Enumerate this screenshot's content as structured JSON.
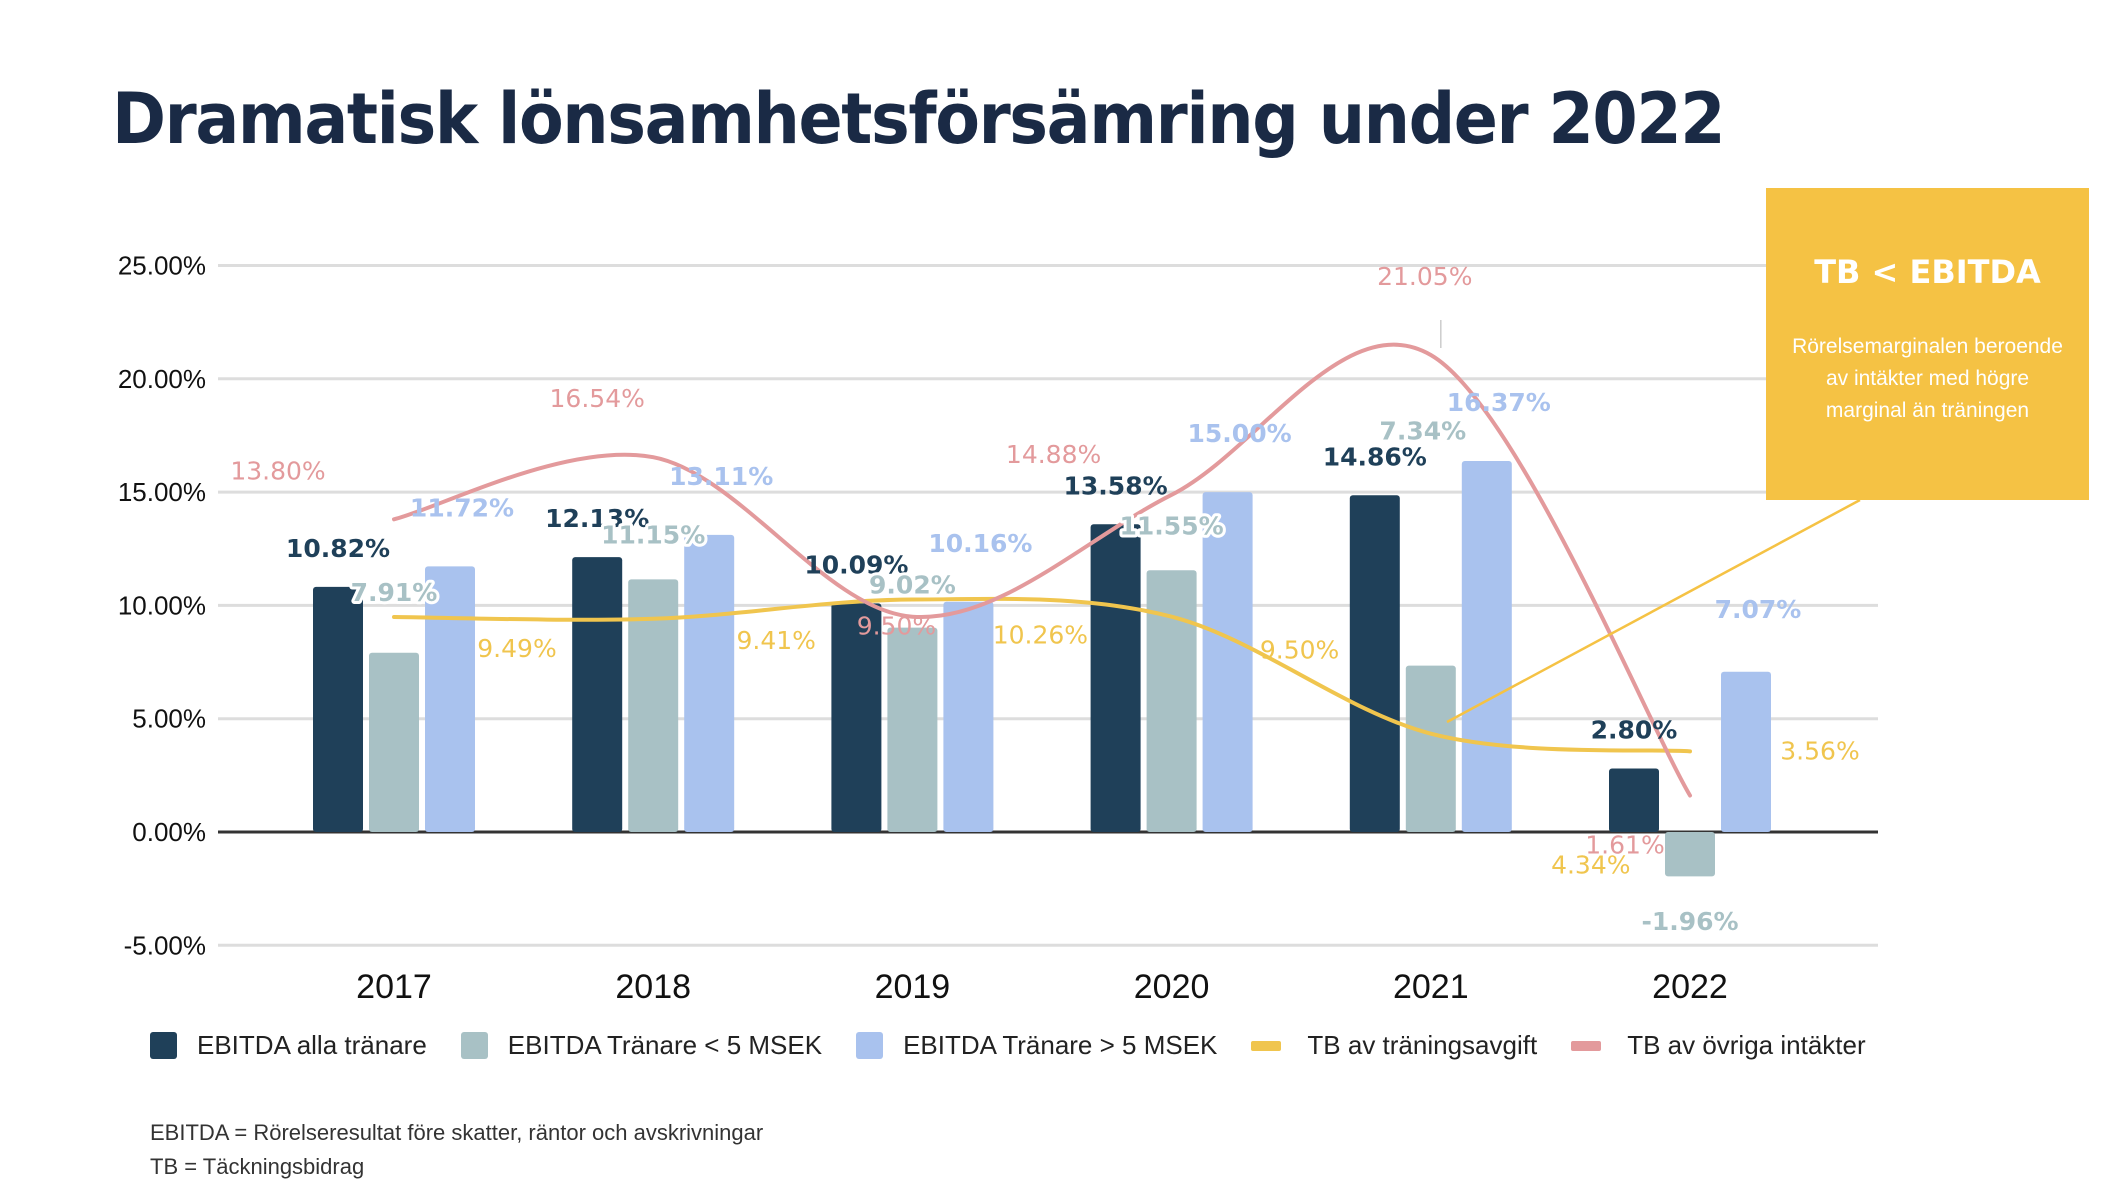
{
  "title": "Dramatisk lönsamhetsförsämring under 2022",
  "callout": {
    "title": "TB < EBITDA",
    "text": "Rörelsemarginalen beroende av intäkter med högre marginal än träningen"
  },
  "footnotes": [
    "EBITDA = Rörelseresultat före skatter, räntor och avskrivningar",
    "TB = Täckningsbidrag"
  ],
  "chart_data": {
    "type": "bar",
    "title": "Dramatisk lönsamhetsförsämring under 2022",
    "xlabel": "",
    "ylabel": "",
    "categories": [
      "2017",
      "2018",
      "2019",
      "2020",
      "2021",
      "2022"
    ],
    "ylim": [
      -5,
      25
    ],
    "yticks": [
      25,
      20,
      15,
      10,
      5,
      0,
      -5
    ],
    "ytick_labels": [
      "25.00%",
      "20.00%",
      "15.00%",
      "10.00%",
      "5.00%",
      "0.00%",
      "-5.00%"
    ],
    "grid": true,
    "legend_position": "bottom",
    "series": [
      {
        "name": "EBITDA alla tränare",
        "kind": "bar",
        "color": "#1f4059",
        "values": [
          10.82,
          12.13,
          10.09,
          13.58,
          14.86,
          2.8
        ],
        "labels": [
          "10.82%",
          "12.13%",
          "10.09%",
          "13.58%",
          "14.86%",
          "2.80%"
        ]
      },
      {
        "name": "EBITDA Tränare < 5 MSEK",
        "kind": "bar",
        "color": "#a8c1c5",
        "values": [
          7.91,
          11.15,
          9.02,
          11.55,
          7.34,
          -1.96
        ],
        "labels": [
          "7.91%",
          "11.15%",
          "9.02%",
          "11.55%",
          "7.34%",
          "-1.96%"
        ]
      },
      {
        "name": "EBITDA Tränare > 5 MSEK",
        "kind": "bar",
        "color": "#a9c2ee",
        "values": [
          11.72,
          13.11,
          10.16,
          15.0,
          16.37,
          7.07
        ],
        "labels": [
          "11.72%",
          "13.11%",
          "10.16%",
          "15.00%",
          "16.37%",
          "7.07%"
        ]
      },
      {
        "name": "TB av träningsavgift",
        "kind": "line",
        "color": "#f0c54e",
        "values": [
          9.49,
          9.41,
          10.26,
          9.5,
          4.34,
          3.56
        ],
        "labels": [
          "9.49%",
          "9.41%",
          "10.26%",
          "9.50%",
          "4.34%",
          "3.56%"
        ]
      },
      {
        "name": "TB av övriga intäkter",
        "kind": "line",
        "color": "#e39a9c",
        "values": [
          13.8,
          16.54,
          9.5,
          14.88,
          21.05,
          1.61
        ],
        "labels": [
          "13.80%",
          "16.54%",
          "9.50%",
          "14.88%",
          "21.05%",
          "1.61%"
        ]
      }
    ]
  }
}
